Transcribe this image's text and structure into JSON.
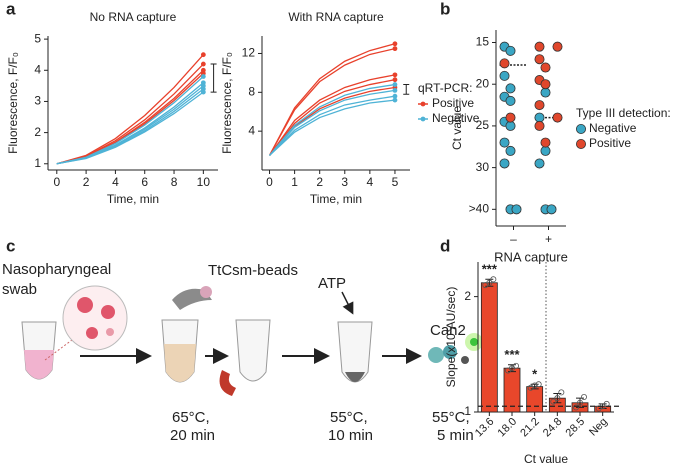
{
  "panel_labels": [
    "a",
    "b",
    "c",
    "d"
  ],
  "diagram": {
    "sample_label": [
      "Nasopharyngeal",
      "swab"
    ],
    "beads_label": "TtCsm-beads",
    "atp_label": "ATP",
    "enzyme_label": "Can2",
    "steps": [
      {
        "temp": "65°C,",
        "time": "20 min"
      },
      {
        "temp": "55°C,",
        "time": "10 min"
      },
      {
        "temp": "55°C,",
        "time": "5 min"
      }
    ]
  },
  "chart_data": [
    {
      "type": "line",
      "title": "No RNA capture",
      "x_label": "Time, min",
      "y_label": "Fluorescence, F/F₀",
      "x": [
        0,
        2,
        4,
        6,
        8,
        10
      ],
      "xlim": [
        -0.6,
        11
      ],
      "xticks": [
        0,
        2,
        4,
        6,
        8,
        10
      ],
      "ylim": [
        0.8,
        5.1
      ],
      "yticks": [
        1,
        2,
        3,
        4,
        5
      ],
      "series": [
        {
          "name": "Positive",
          "color": "#e8412c",
          "values": [
            [
              1,
              1.27,
              1.81,
              2.55,
              3.45,
              4.5
            ],
            [
              1,
              1.24,
              1.74,
              2.41,
              3.24,
              4.2
            ],
            [
              1,
              1.23,
              1.69,
              2.33,
              3.1,
              4.0
            ],
            [
              1,
              1.22,
              1.67,
              2.28,
              3.03,
              3.9
            ]
          ]
        },
        {
          "name": "Negative",
          "color": "#4fb3d6",
          "values": [
            [
              1,
              1.21,
              1.65,
              2.24,
              2.96,
              3.8
            ],
            [
              1,
              1.2,
              1.6,
              2.15,
              2.82,
              3.6
            ],
            [
              1,
              1.19,
              1.58,
              2.11,
              2.75,
              3.5
            ],
            [
              1,
              1.18,
              1.55,
              2.06,
              2.68,
              3.4
            ],
            [
              1,
              1.17,
              1.53,
              2.02,
              2.61,
              3.3
            ]
          ]
        }
      ],
      "error_bar": {
        "x": 10.7,
        "low": 3.3,
        "high": 4.2
      }
    },
    {
      "type": "line",
      "title": "With RNA capture",
      "x_label": "Time, min",
      "y_label": "Fluorescence, F/F₀",
      "x": [
        0,
        1,
        2,
        3,
        4,
        5
      ],
      "xlim": [
        -0.3,
        5.6
      ],
      "xticks": [
        0,
        1,
        2,
        3,
        4,
        5
      ],
      "ylim": [
        0,
        13.8
      ],
      "yticks": [
        4,
        8,
        12
      ],
      "legend_title": "qRT-PCR:",
      "series": [
        {
          "name": "Positive",
          "color": "#e8412c",
          "values": [
            [
              1.5,
              6.4,
              9.4,
              11.2,
              12.3,
              13
            ],
            [
              1.5,
              6.2,
              9.1,
              10.8,
              11.9,
              12.5
            ],
            [
              1.5,
              5.1,
              7.2,
              8.5,
              9.3,
              9.8
            ],
            [
              1.5,
              4.8,
              6.9,
              8.1,
              8.8,
              9.3
            ],
            [
              1.5,
              4.5,
              6.3,
              7.4,
              8.1,
              8.5
            ]
          ]
        },
        {
          "name": "Negative",
          "color": "#4fb3d6",
          "values": [
            [
              1.5,
              4.6,
              6.5,
              7.7,
              8.4,
              8.8
            ],
            [
              1.5,
              4.4,
              6.1,
              7.2,
              7.8,
              8.2
            ],
            [
              1.5,
              4.1,
              5.7,
              6.7,
              7.2,
              7.6
            ],
            [
              1.5,
              3.9,
              5.4,
              6.3,
              6.9,
              7.2
            ]
          ]
        }
      ],
      "error_bar": {
        "x": 5.45,
        "low": 7.8,
        "high": 8.8
      }
    },
    {
      "type": "strip",
      "y_label": "Ct value",
      "x_label": "RNA capture",
      "categories": [
        "–",
        "+"
      ],
      "ylim": [
        13.5,
        37
      ],
      "y_reversed": true,
      "yticks": [
        15,
        20,
        25,
        30,
        {
          "value": 35,
          "label": ">40"
        }
      ],
      "legend_title": "Type III detection:",
      "means": [
        17.7,
        24
      ],
      "series": [
        {
          "name": "Negative",
          "color": "#3aa6c4",
          "x": [
            "–",
            "–",
            "–",
            "–",
            "–",
            "–",
            "–",
            "–",
            "–",
            "–",
            "–",
            "–",
            "–",
            "+",
            "+",
            "+",
            "+",
            "+",
            "+"
          ],
          "values": [
            15.5,
            16,
            19,
            20.5,
            21.5,
            22,
            24.5,
            25,
            27,
            28,
            29.5,
            35,
            35,
            21,
            24,
            28,
            29.5,
            35,
            35
          ]
        },
        {
          "name": "Positive",
          "color": "#e0472c",
          "x": [
            "–",
            "–",
            "+",
            "+",
            "+",
            "+",
            "+",
            "+",
            "+",
            "+",
            "+",
            "+"
          ],
          "values": [
            17.5,
            24,
            15.5,
            15.5,
            17,
            18,
            19.5,
            20,
            22.5,
            24,
            25,
            27
          ]
        }
      ]
    },
    {
      "type": "bar",
      "x_label": "Ct value",
      "y_label": "Slope(x10³AU/sec)",
      "color": "#e8472b",
      "categories": [
        "13.6",
        "18.0",
        "21.2",
        "24.8",
        "28.5",
        "Neg"
      ],
      "values": [
        2.12,
        1.38,
        1.22,
        1.12,
        1.08,
        1.05
      ],
      "errors": [
        0.03,
        0.03,
        0.02,
        0.04,
        0.04,
        0.02
      ],
      "points": [
        [
          2.1,
          2.12,
          2.15
        ],
        [
          1.36,
          1.38,
          1.4
        ],
        [
          1.21,
          1.23,
          1.24
        ],
        [
          1.09,
          1.12,
          1.17
        ],
        [
          1.04,
          1.08,
          1.13
        ],
        [
          1.03,
          1.05,
          1.07
        ]
      ],
      "significance": [
        "***",
        "***",
        "*",
        null,
        null,
        null
      ],
      "threshold": 1.05,
      "ylim": [
        1.0,
        2.3
      ],
      "yticks": [
        1,
        2
      ]
    }
  ]
}
